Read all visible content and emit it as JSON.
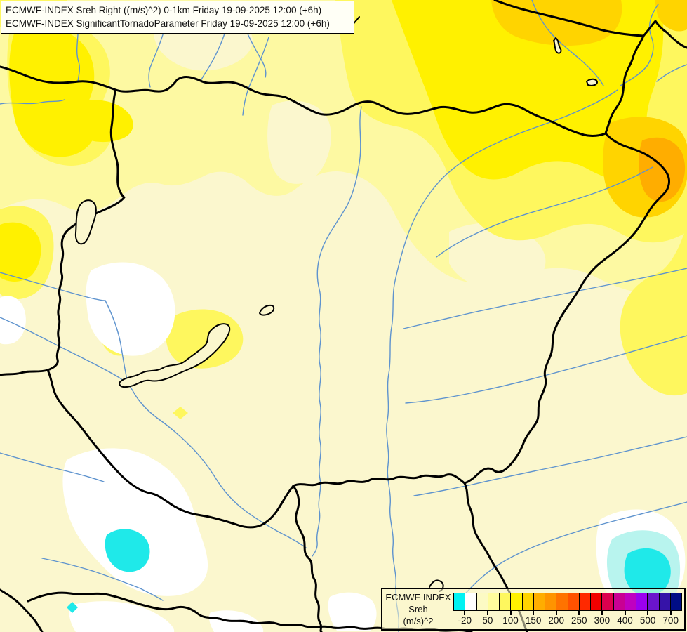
{
  "title_box": {
    "line1": "ECMWF-INDEX Sreh Right ((m/s)^2) 0-1km Friday 19-09-2025 12:00 (+6h)",
    "line2": "ECMWF-INDEX SignificantTornadoParameter Friday 19-09-2025 12:00 (+6h)"
  },
  "legend": {
    "model": "ECMWF-INDEX",
    "parameter": "Sreh",
    "units": "(m/s)^2",
    "colorbar": {
      "colors": [
        "#00F2F2",
        "#FFFFFF",
        "#FCFAC4",
        "#FFFC9E",
        "#FEF75E",
        "#FFF100",
        "#FFD400",
        "#FFAD00",
        "#FF9400",
        "#FF7300",
        "#FF5200",
        "#FF2900",
        "#F10000",
        "#DC004E",
        "#C90093",
        "#C000C0",
        "#9B00EF",
        "#6B14CC",
        "#3613A8",
        "#000D85"
      ],
      "tick_labels": [
        "-20",
        "50",
        "100",
        "150",
        "200",
        "250",
        "300",
        "400",
        "500",
        "700"
      ],
      "tick_positions": [
        1,
        3,
        5,
        7,
        9,
        11,
        13,
        15,
        17,
        19
      ]
    }
  },
  "map_palette": {
    "base_cream": "#FBF7CE",
    "pale_yellow": "#FDF9A2",
    "yellow": "#FEF75E",
    "bright_yellow": "#FFF100",
    "gold": "#FFD400",
    "amber": "#FFAD00",
    "white_region": "#FFFFFF",
    "cyan": "#1FE9E9",
    "pale_cyan": "#B8F4EE",
    "border_color": "#000000",
    "river_color": "#5E93CE"
  }
}
